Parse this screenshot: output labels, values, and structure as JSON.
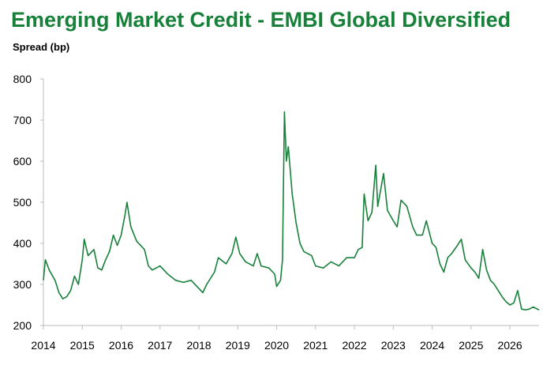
{
  "chart_data": {
    "type": "line",
    "title": "Emerging Market Credit - EMBI Global Diversified",
    "y_label": "Spread (bp)",
    "x": [
      2014.0,
      2014.05,
      2014.15,
      2014.3,
      2014.4,
      2014.5,
      2014.6,
      2014.7,
      2014.8,
      2014.9,
      2015.0,
      2015.05,
      2015.15,
      2015.3,
      2015.4,
      2015.5,
      2015.6,
      2015.7,
      2015.8,
      2015.9,
      2016.0,
      2016.1,
      2016.15,
      2016.25,
      2016.4,
      2016.5,
      2016.6,
      2016.7,
      2016.8,
      2016.9,
      2017.0,
      2017.2,
      2017.4,
      2017.6,
      2017.8,
      2018.0,
      2018.1,
      2018.2,
      2018.4,
      2018.5,
      2018.7,
      2018.85,
      2018.95,
      2019.05,
      2019.2,
      2019.4,
      2019.5,
      2019.6,
      2019.8,
      2019.95,
      2020.0,
      2020.1,
      2020.15,
      2020.2,
      2020.25,
      2020.3,
      2020.4,
      2020.5,
      2020.6,
      2020.7,
      2020.9,
      2021.0,
      2021.2,
      2021.4,
      2021.6,
      2021.8,
      2022.0,
      2022.1,
      2022.2,
      2022.25,
      2022.35,
      2022.45,
      2022.55,
      2022.6,
      2022.75,
      2022.85,
      2023.0,
      2023.1,
      2023.2,
      2023.35,
      2023.5,
      2023.6,
      2023.75,
      2023.85,
      2024.0,
      2024.1,
      2024.2,
      2024.3,
      2024.4,
      2024.5,
      2024.65,
      2024.75,
      2024.85,
      2025.0,
      2025.1,
      2025.2,
      2025.3,
      2025.4,
      2025.5,
      2025.6,
      2025.7,
      2025.8,
      2025.9,
      2026.0,
      2026.1,
      2026.2,
      2026.3,
      2026.4,
      2026.5,
      2026.6,
      2026.75
    ],
    "series": [
      {
        "name": "EMBI Global Diversified",
        "color": "#17813a",
        "values": [
          310,
          360,
          335,
          310,
          280,
          265,
          270,
          285,
          320,
          300,
          360,
          410,
          370,
          385,
          340,
          335,
          360,
          380,
          420,
          395,
          420,
          470,
          500,
          440,
          405,
          395,
          385,
          345,
          335,
          340,
          345,
          325,
          310,
          305,
          310,
          290,
          280,
          300,
          330,
          365,
          350,
          375,
          415,
          375,
          355,
          345,
          375,
          345,
          340,
          325,
          295,
          310,
          360,
          720,
          600,
          635,
          520,
          450,
          400,
          380,
          370,
          345,
          340,
          355,
          345,
          365,
          365,
          385,
          390,
          520,
          455,
          475,
          590,
          490,
          570,
          480,
          455,
          440,
          505,
          490,
          440,
          420,
          420,
          455,
          400,
          390,
          350,
          330,
          365,
          375,
          395,
          410,
          360,
          340,
          330,
          315,
          385,
          335,
          310,
          300,
          285,
          270,
          258,
          250,
          255,
          285,
          240,
          238,
          240,
          245,
          238
        ]
      }
    ],
    "xlim": [
      2014,
      2026.75
    ],
    "xticks": [
      2014,
      2015,
      2016,
      2017,
      2018,
      2019,
      2020,
      2021,
      2022,
      2023,
      2024,
      2025,
      2026
    ],
    "ylim": [
      200,
      800
    ],
    "yticks": [
      200,
      300,
      400,
      500,
      600,
      700,
      800
    ],
    "grid": false
  }
}
